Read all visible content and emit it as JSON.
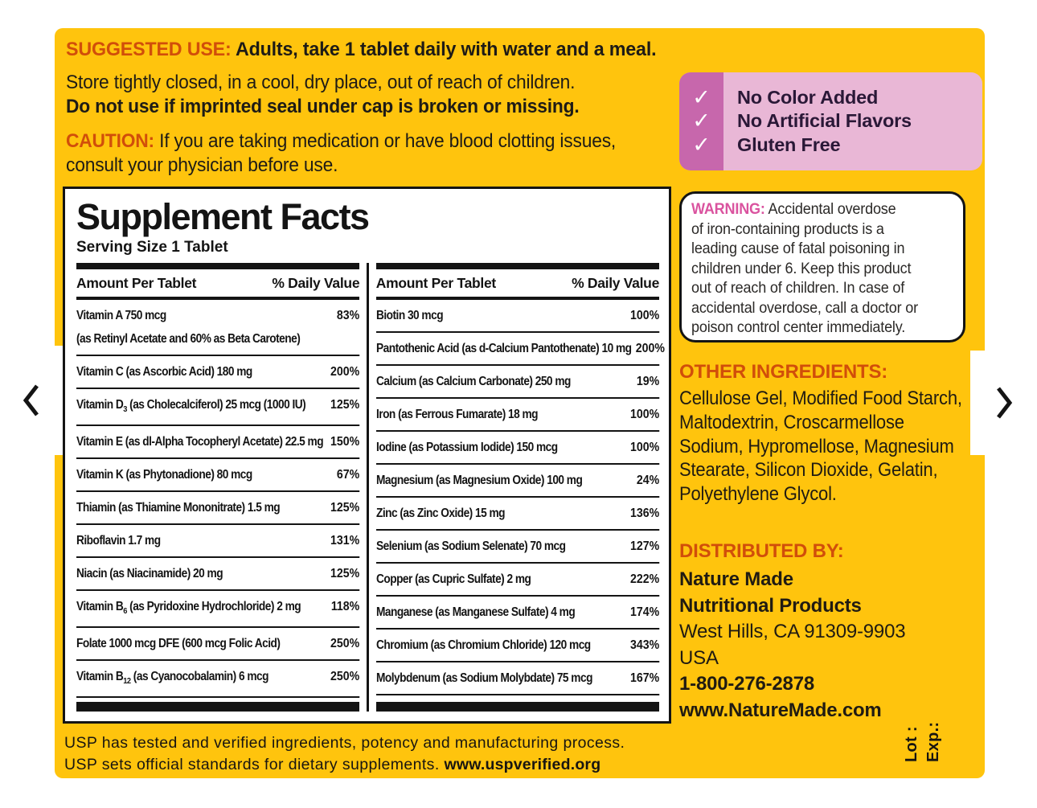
{
  "colors": {
    "label_yellow": "#FFC40D",
    "heading_orange": "#D14E0A",
    "warning_pink": "#DA539F",
    "claims_bg": "#E9B7D6",
    "claims_strip": "#C767AC",
    "panel_ink": "#141414"
  },
  "icons": {
    "check": "✓",
    "prev_arrow": "chevron-left",
    "next_arrow": "chevron-right"
  },
  "label": {
    "suggested_use": {
      "heading": "SUGGESTED USE:",
      "text": "Adults, take 1 tablet daily with water and a meal."
    },
    "storage": {
      "line1": "Store tightly closed, in a cool, dry place, out of reach of children.",
      "line2": "Do not use if imprinted seal under cap is broken or missing."
    },
    "caution": {
      "heading": "CAUTION:",
      "lines": [
        "If you are taking medication or have blood clotting issues,",
        "consult your physician before use."
      ]
    },
    "claims": {
      "items": [
        "No Color Added",
        "No Artificial Flavors",
        "Gluten Free"
      ]
    },
    "supplement_facts": {
      "title": "Supplement Facts",
      "serving_size": "Serving Size 1 Tablet",
      "headers": {
        "amount": "Amount Per Tablet",
        "dv": "% Daily Value"
      },
      "left_rows": [
        {
          "pre": "Vitamin A  750 mcg",
          "dv": "83%",
          "note": "(as Retinyl Acetate and 60% as Beta Carotene)"
        },
        {
          "pre": "Vitamin C (as Ascorbic Acid)  180 mg",
          "dv": "200%"
        },
        {
          "pre": "Vitamin D",
          "sub": "3",
          "post": " (as Cholecalciferol)  25 mcg (1000 IU)",
          "dv": "125%"
        },
        {
          "pre": "Vitamin E (as dl-Alpha Tocopheryl Acetate)  22.5 mg",
          "dv": "150%"
        },
        {
          "pre": "Vitamin K (as Phytonadione)  80 mcg",
          "dv": "67%"
        },
        {
          "pre": "Thiamin (as Thiamine Mononitrate)  1.5 mg",
          "dv": "125%"
        },
        {
          "pre": "Riboflavin  1.7 mg",
          "dv": "131%"
        },
        {
          "pre": "Niacin (as Niacinamide)  20 mg",
          "dv": "125%"
        },
        {
          "pre": "Vitamin B",
          "sub": "6",
          "post": " (as Pyridoxine Hydrochloride)  2 mg",
          "dv": "118%"
        },
        {
          "pre": "Folate  1000 mcg DFE (600 mcg Folic Acid)",
          "dv": "250%"
        },
        {
          "pre": "Vitamin B",
          "sub": "12",
          "post": " (as Cyanocobalamin)  6 mcg",
          "dv": "250%"
        }
      ],
      "right_rows": [
        {
          "pre": "Biotin  30 mcg",
          "dv": "100%"
        },
        {
          "pre": "Pantothenic Acid (as d-Calcium Pantothenate)  10 mg",
          "dv": "200%"
        },
        {
          "pre": "Calcium (as Calcium Carbonate)  250 mg",
          "dv": "19%"
        },
        {
          "pre": "Iron (as Ferrous Fumarate)  18 mg",
          "dv": "100%"
        },
        {
          "pre": "Iodine (as Potassium Iodide)  150 mcg",
          "dv": "100%"
        },
        {
          "pre": "Magnesium (as Magnesium Oxide)  100 mg",
          "dv": "24%"
        },
        {
          "pre": "Zinc (as Zinc Oxide)  15 mg",
          "dv": "136%"
        },
        {
          "pre": "Selenium (as Sodium Selenate)  70 mcg",
          "dv": "127%"
        },
        {
          "pre": "Copper (as Cupric Sulfate)  2 mg",
          "dv": "222%"
        },
        {
          "pre": "Manganese (as Manganese Sulfate)  4 mg",
          "dv": "174%"
        },
        {
          "pre": "Chromium (as Chromium Chloride)  120 mcg",
          "dv": "343%"
        },
        {
          "pre": "Molybdenum (as Sodium Molybdate)  75 mcg",
          "dv": "167%"
        }
      ]
    },
    "warning": {
      "heading": "WARNING:",
      "lines": [
        "Accidental overdose",
        "of iron-containing products is a",
        "leading cause of fatal poisoning in",
        "children under 6. Keep this product",
        "out of reach of children. In case of",
        "accidental overdose, call a doctor or",
        "poison control center immediately."
      ]
    },
    "other_ingredients": {
      "heading": "OTHER INGREDIENTS:",
      "lines": [
        "Cellulose Gel, Modified Food Starch,",
        "Maltodextrin, Croscarmellose",
        "Sodium, Hypromellose, Magnesium",
        "Stearate, Silicon Dioxide, Gelatin,",
        "Polyethylene Glycol."
      ]
    },
    "distributed_by": {
      "heading": "DISTRIBUTED BY:",
      "lines": [
        {
          "text": "Nature Made",
          "bold": true
        },
        {
          "text": "Nutritional Products",
          "bold": true
        },
        {
          "text": "West Hills, CA 91309-9903",
          "bold": false
        },
        {
          "text": "USA",
          "bold": false
        },
        {
          "text": "1-800-276-2878",
          "bold": true
        },
        {
          "text": "www.NatureMade.com",
          "bold": true
        }
      ]
    },
    "usp": {
      "line1": "USP has tested and verified ingredients, potency and manufacturing process.",
      "line2_text": "USP sets official standards for dietary supplements.",
      "line2_url": "www.uspverified.org"
    },
    "lot_exp": {
      "lot": "Lot :",
      "exp": "Exp.:"
    }
  }
}
